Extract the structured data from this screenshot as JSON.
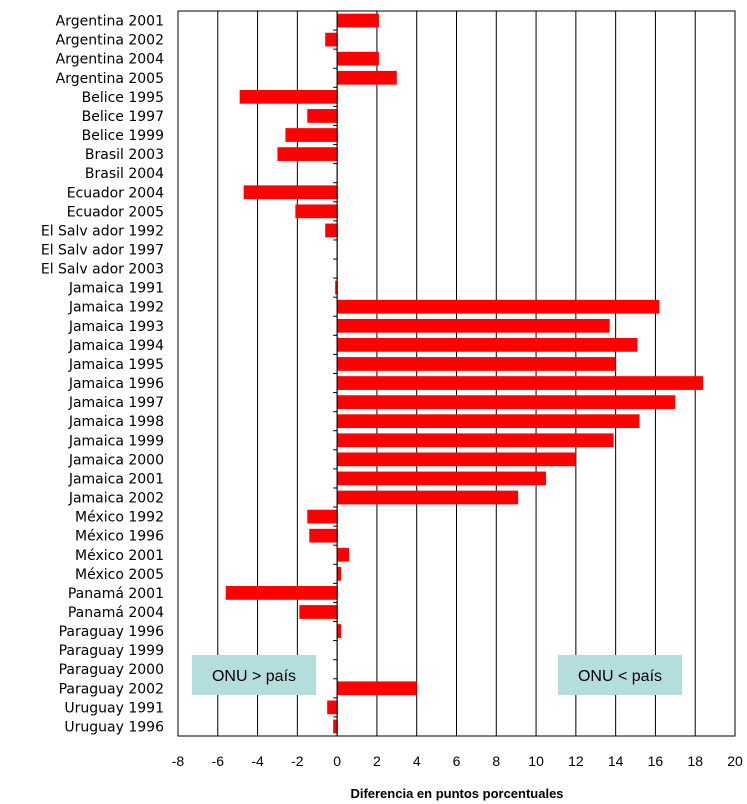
{
  "chart_data": {
    "type": "bar",
    "orientation": "horizontal",
    "categories": [
      "Argentina 2001",
      "Argentina 2002",
      "Argentina 2004",
      "Argentina 2005",
      "Belice 1995",
      "Belice 1997",
      "Belice 1999",
      "Brasil 2003",
      "Brasil 2004",
      "Ecuador 2004",
      "Ecuador 2005",
      "El Salv ador 1992",
      "El Salv ador 1997",
      "El Salv ador 2003",
      "Jamaica 1991",
      "Jamaica 1992",
      "Jamaica 1993",
      "Jamaica 1994",
      "Jamaica 1995",
      "Jamaica 1996",
      "Jamaica 1997",
      "Jamaica 1998",
      "Jamaica 1999",
      "Jamaica 2000",
      "Jamaica 2001",
      "Jamaica 2002",
      "México 1992",
      "México 1996",
      "México 2001",
      "México 2005",
      "Panamá 2001",
      "Panamá 2004",
      "Paraguay 1996",
      "Paraguay 1999",
      "Paraguay 2000",
      "Paraguay 2002",
      "Uruguay 1991",
      "Uruguay 1996"
    ],
    "values": [
      2.1,
      -0.6,
      2.1,
      3.0,
      -4.9,
      -1.5,
      -2.6,
      -3.0,
      0.0,
      -4.7,
      -2.1,
      -0.6,
      0.0,
      0.0,
      -0.1,
      16.2,
      13.7,
      15.1,
      14.0,
      18.4,
      17.0,
      15.2,
      13.9,
      12.0,
      10.5,
      9.1,
      -1.5,
      -1.4,
      0.6,
      0.2,
      -5.6,
      -1.9,
      0.2,
      0.0,
      0.0,
      4.0,
      -0.5,
      -0.2
    ],
    "xlim": [
      -8,
      20
    ],
    "xticks": [
      -8,
      -6,
      -4,
      -2,
      0,
      2,
      4,
      6,
      8,
      10,
      12,
      14,
      16,
      18,
      20
    ],
    "xlabel": "Diferencia en puntos porcentuales",
    "ylabel": "",
    "title": "",
    "grid": "vertical",
    "bar_color": "#ff0000",
    "annotations": [
      {
        "text": "ONU > país",
        "position": "bottom-left",
        "fill": "#b4dede"
      },
      {
        "text": "ONU < país",
        "position": "bottom-right",
        "fill": "#b4dede"
      }
    ]
  }
}
